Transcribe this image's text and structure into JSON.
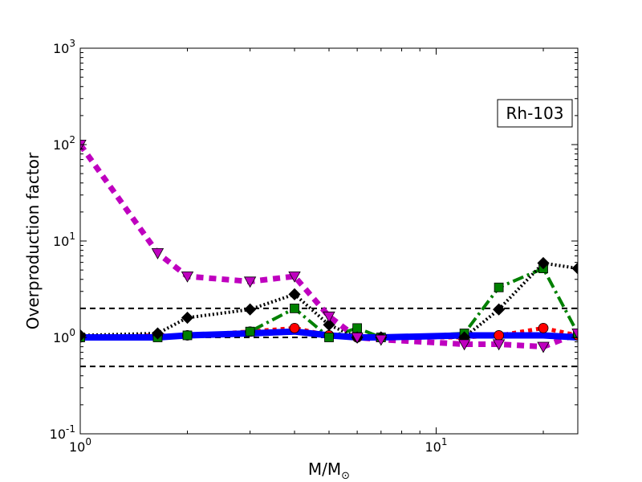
{
  "chart_data": {
    "type": "line",
    "xscale": "log",
    "yscale": "log",
    "xlim": [
      1,
      25
    ],
    "ylim": [
      0.1,
      1000
    ],
    "xlabel": "M/M",
    "xlabel_sub": "⊙",
    "ylabel": "Overproduction factor",
    "x_ticks": [
      {
        "value": 1,
        "base": "10",
        "exp": "0"
      },
      {
        "value": 10,
        "base": "10",
        "exp": "1"
      }
    ],
    "y_ticks": [
      {
        "value": 0.1,
        "base": "10",
        "exp": "-1"
      },
      {
        "value": 1,
        "base": "10",
        "exp": "0"
      },
      {
        "value": 10,
        "base": "10",
        "exp": "1"
      },
      {
        "value": 100,
        "base": "10",
        "exp": "2"
      },
      {
        "value": 1000,
        "base": "10",
        "exp": "3"
      }
    ],
    "reference_lines": [
      0.5,
      1,
      2
    ],
    "annotation": "Rh-103",
    "annotation_position": "top-right",
    "series": [
      {
        "color": "#ff0000",
        "dash": "5,5",
        "width": 5,
        "marker": "circle",
        "x": [
          1,
          1.65,
          2,
          3,
          4,
          5,
          6,
          7,
          12,
          15,
          20,
          25
        ],
        "y": [
          1.0,
          1.05,
          1.05,
          1.15,
          1.25,
          1.05,
          1.0,
          1.0,
          1.0,
          1.05,
          1.25,
          1.05
        ]
      },
      {
        "color": "#008000",
        "dash": "14,5,3,5",
        "width": 4,
        "marker": "square",
        "x": [
          1,
          1.65,
          2,
          3,
          4,
          5,
          6,
          7,
          12,
          15,
          20,
          25
        ],
        "y": [
          1.0,
          1.0,
          1.05,
          1.15,
          2.0,
          1.0,
          1.25,
          1.0,
          1.1,
          3.3,
          5.2,
          1.1
        ]
      },
      {
        "color": "#000000",
        "dash": "2,3",
        "width": 4,
        "marker": "diamond",
        "x": [
          1,
          1.65,
          2,
          3,
          4,
          5,
          6,
          7,
          12,
          15,
          20,
          25
        ],
        "y": [
          1.05,
          1.1,
          1.6,
          1.95,
          2.8,
          1.35,
          1.0,
          1.0,
          1.0,
          1.95,
          5.9,
          5.2
        ]
      },
      {
        "color": "#bf00bf",
        "dash": "9,7",
        "width": 7,
        "marker": "triangle-down",
        "x": [
          1,
          1.65,
          2,
          3,
          4,
          5,
          6,
          7,
          12,
          15,
          20,
          25
        ],
        "y": [
          100,
          7.5,
          4.3,
          3.8,
          4.3,
          1.65,
          1.0,
          0.95,
          0.85,
          0.85,
          0.8,
          1.1
        ]
      },
      {
        "color": "#0000ff",
        "dash": "",
        "width": 8,
        "marker": "none",
        "x": [
          1,
          1.65,
          2,
          3,
          4,
          5,
          6,
          7,
          12,
          15,
          20,
          25
        ],
        "y": [
          1.0,
          1.0,
          1.05,
          1.1,
          1.15,
          1.05,
          1.0,
          1.0,
          1.05,
          1.05,
          1.05,
          1.0
        ]
      }
    ]
  }
}
